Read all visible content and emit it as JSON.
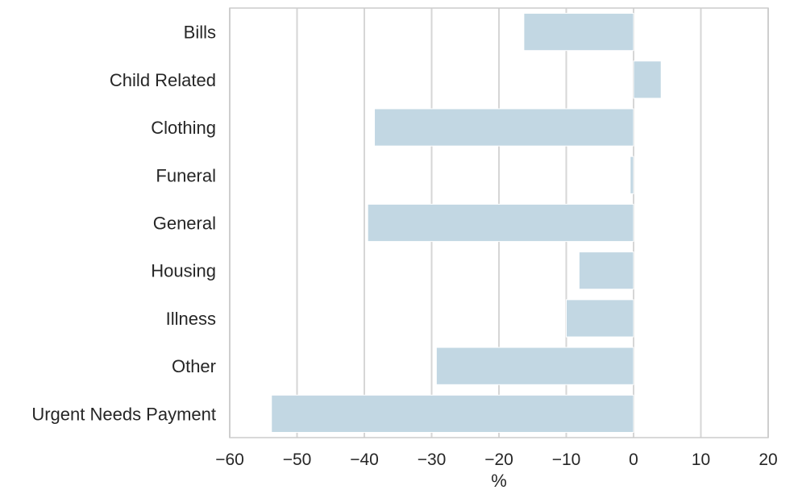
{
  "chart_data": {
    "type": "bar",
    "orientation": "horizontal",
    "categories": [
      "Bills",
      "Child Related",
      "Clothing",
      "Funeral",
      "General",
      "Housing",
      "Illness",
      "Other",
      "Urgent Needs Payment"
    ],
    "values": [
      -16.3,
      4.1,
      -38.5,
      -0.5,
      -39.5,
      -8.1,
      -10.0,
      -29.3,
      -53.8
    ],
    "xlabel": "%",
    "ylabel": "",
    "xlim": [
      -60,
      20
    ],
    "xticks": [
      "−60",
      "−50",
      "−40",
      "−30",
      "−20",
      "−10",
      "0",
      "10",
      "20"
    ],
    "xtick_values": [
      -60,
      -50,
      -40,
      -30,
      -20,
      -10,
      0,
      10,
      20
    ],
    "grid": "vertical",
    "bar_color": "#c2d7e3",
    "grid_color": "#d6d6d6",
    "frame_color": "#cccccc"
  }
}
